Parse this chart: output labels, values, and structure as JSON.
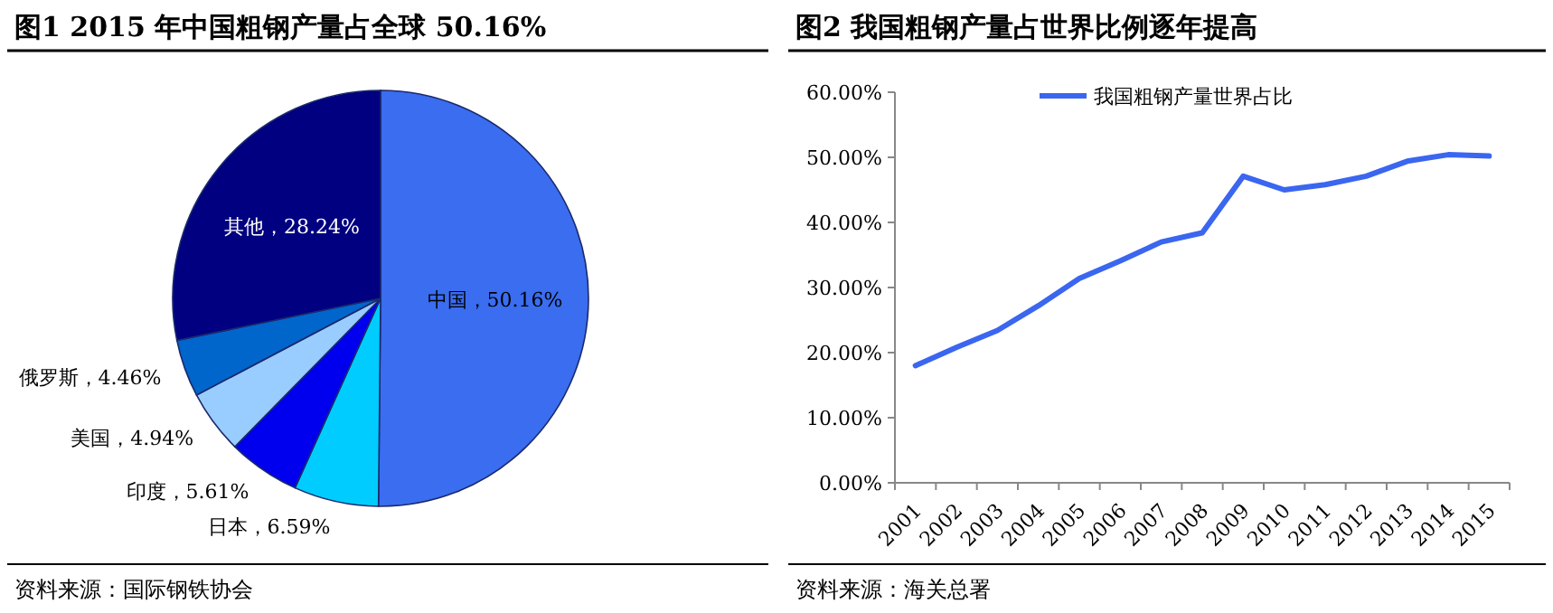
{
  "chart_data": [
    {
      "type": "pie",
      "title": "图1 2015 年中国粗钢产量占全球 50.16%",
      "categories": [
        "中国",
        "日本",
        "印度",
        "美国",
        "俄罗斯",
        "其他"
      ],
      "values": [
        50.16,
        6.59,
        5.61,
        4.94,
        4.46,
        28.24
      ],
      "colors": [
        "#3a6df0",
        "#00ccff",
        "#0000ee",
        "#99ccff",
        "#0066cc",
        "#000080"
      ],
      "value_labels": [
        "，50.16%",
        "，6.59%",
        "，5.61%",
        "，4.94%",
        "，4.46%",
        "，28.24%"
      ],
      "annotations": [
        "资料来源：国际钢铁协会"
      ]
    },
    {
      "type": "line",
      "title": "图2 我国粗钢产量占世界比例逐年提高",
      "categories": [
        "2001",
        "2002",
        "2003",
        "2004",
        "2005",
        "2006",
        "2007",
        "2008",
        "2009",
        "2010",
        "2011",
        "2012",
        "2013",
        "2014",
        "2015"
      ],
      "series": [
        {
          "name": "我国粗钢产量世界占比",
          "color": "#3a66f0",
          "values": [
            18.0,
            20.8,
            23.4,
            27.2,
            31.4,
            34.1,
            37.0,
            38.4,
            47.1,
            45.0,
            45.8,
            47.1,
            49.4,
            50.4,
            50.2
          ]
        }
      ],
      "ylim": [
        0,
        60
      ],
      "yticks": [
        {
          "value": 0,
          "label": "0.00%"
        },
        {
          "value": 10,
          "label": "10.00%"
        },
        {
          "value": 20,
          "label": "20.00%"
        },
        {
          "value": 30,
          "label": "30.00%"
        },
        {
          "value": 40,
          "label": "40.00%"
        },
        {
          "value": 50,
          "label": "50.00%"
        },
        {
          "value": 60,
          "label": "60.00%"
        }
      ],
      "legend": "top",
      "grid": false,
      "marker": "none",
      "line_style": "solid",
      "annotations": [
        "资料来源：海关总署"
      ]
    }
  ]
}
